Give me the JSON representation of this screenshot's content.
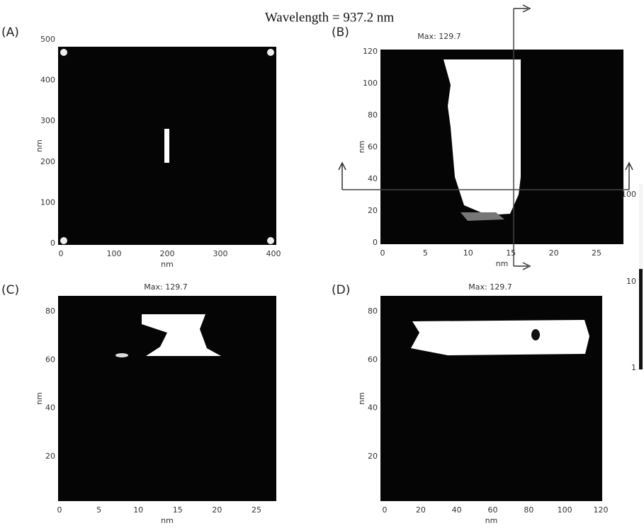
{
  "title": "Wavelength = 937.2 nm",
  "panels": [
    {
      "label": "(A)",
      "xlabel": "nm",
      "ylabel": "nm",
      "xticks": [
        0,
        100,
        200,
        300,
        400
      ],
      "yticks": [
        0,
        100,
        200,
        300,
        400,
        500
      ]
    },
    {
      "label": "(B)",
      "max": "Max:  129.7",
      "xlabel": "nm",
      "ylabel": "nm",
      "xticks": [
        0,
        5,
        10,
        15,
        20,
        25
      ],
      "yticks": [
        0,
        20,
        40,
        60,
        80,
        100,
        120
      ]
    },
    {
      "label": "(C)",
      "max": "Max:  129.7",
      "xlabel": "nm",
      "ylabel": "nm",
      "xticks": [
        0,
        5,
        10,
        15,
        20,
        25
      ],
      "yticks": [
        20,
        40,
        60,
        80
      ]
    },
    {
      "label": "(D)",
      "max": "Max:  129.7",
      "xlabel": "nm",
      "ylabel": "nm",
      "xticks": [
        0,
        20,
        40,
        60,
        80,
        100,
        120
      ],
      "yticks": [
        20,
        40,
        60,
        80
      ]
    }
  ],
  "colorbar": {
    "labels": [
      100,
      10,
      1
    ]
  }
}
